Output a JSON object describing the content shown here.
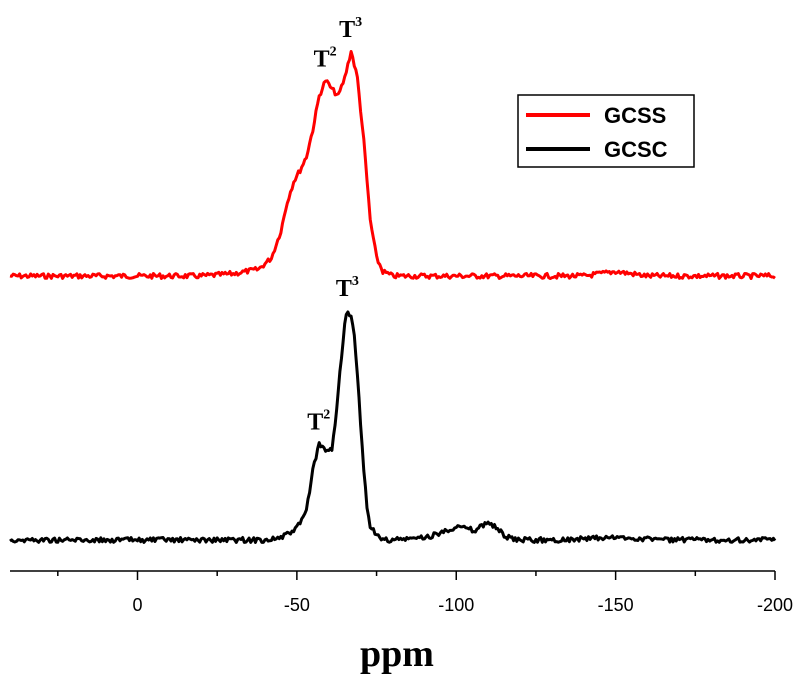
{
  "chart_data": {
    "type": "line",
    "title": "",
    "xlabel": "ppm",
    "ylabel": "",
    "xlim": [
      40,
      -200
    ],
    "x_ticks": [
      0,
      -50,
      -100,
      -150,
      -200
    ],
    "x_tick_labels": [
      "0",
      "-50",
      "-100",
      "-150",
      "-200"
    ],
    "grid": false,
    "legend_position": "top-right",
    "series": [
      {
        "name": "GCSS",
        "color": "#ff0000",
        "x": [
          40,
          30,
          20,
          10,
          0,
          -10,
          -20,
          -30,
          -38,
          -42,
          -45,
          -47,
          -49,
          -51,
          -53,
          -55,
          -57,
          -59,
          -61,
          -63,
          -65,
          -67,
          -69,
          -71,
          -73,
          -75,
          -77,
          -80,
          -90,
          -100,
          -120,
          -140,
          -150,
          -160,
          -180,
          -200
        ],
        "y": [
          0.0,
          0.0,
          0.0,
          0.0,
          0.0,
          0.0,
          0.0,
          0.01,
          0.03,
          0.08,
          0.2,
          0.33,
          0.42,
          0.47,
          0.53,
          0.65,
          0.8,
          0.87,
          0.83,
          0.8,
          0.88,
          1.0,
          0.88,
          0.6,
          0.25,
          0.08,
          0.02,
          0.0,
          0.0,
          0.0,
          0.0,
          0.0,
          0.02,
          0.0,
          0.0,
          0.0
        ]
      },
      {
        "name": "GCSC",
        "color": "#000000",
        "x": [
          40,
          30,
          20,
          10,
          0,
          -10,
          -20,
          -30,
          -40,
          -45,
          -48,
          -51,
          -53,
          -55,
          -57,
          -58,
          -59,
          -60,
          -61,
          -62,
          -63,
          -64,
          -65,
          -66,
          -67,
          -68,
          -69,
          -70,
          -71,
          -72,
          -73,
          -75,
          -77,
          -80,
          -90,
          -95,
          -100,
          -103,
          -106,
          -110,
          -112,
          -115,
          -118,
          -130,
          -150,
          -170,
          -200
        ],
        "y": [
          0.0,
          0.0,
          0.0,
          0.0,
          0.0,
          0.0,
          0.0,
          0.0,
          0.0,
          0.01,
          0.03,
          0.07,
          0.13,
          0.3,
          0.42,
          0.4,
          0.39,
          0.38,
          0.4,
          0.5,
          0.65,
          0.8,
          0.94,
          1.0,
          0.97,
          0.88,
          0.72,
          0.5,
          0.3,
          0.15,
          0.06,
          0.02,
          0.0,
          0.0,
          0.01,
          0.03,
          0.06,
          0.05,
          0.04,
          0.08,
          0.06,
          0.02,
          0.0,
          0.0,
          0.01,
          0.0,
          0.0
        ]
      }
    ],
    "annotations": [
      {
        "series": "GCSS",
        "base": "T",
        "sup": "2",
        "at_x": -59
      },
      {
        "series": "GCSS",
        "base": "T",
        "sup": "3",
        "at_x": -67
      },
      {
        "series": "GCSC",
        "base": "T",
        "sup": "2",
        "at_x": -57
      },
      {
        "series": "GCSC",
        "base": "T",
        "sup": "3",
        "at_x": -66
      }
    ]
  }
}
